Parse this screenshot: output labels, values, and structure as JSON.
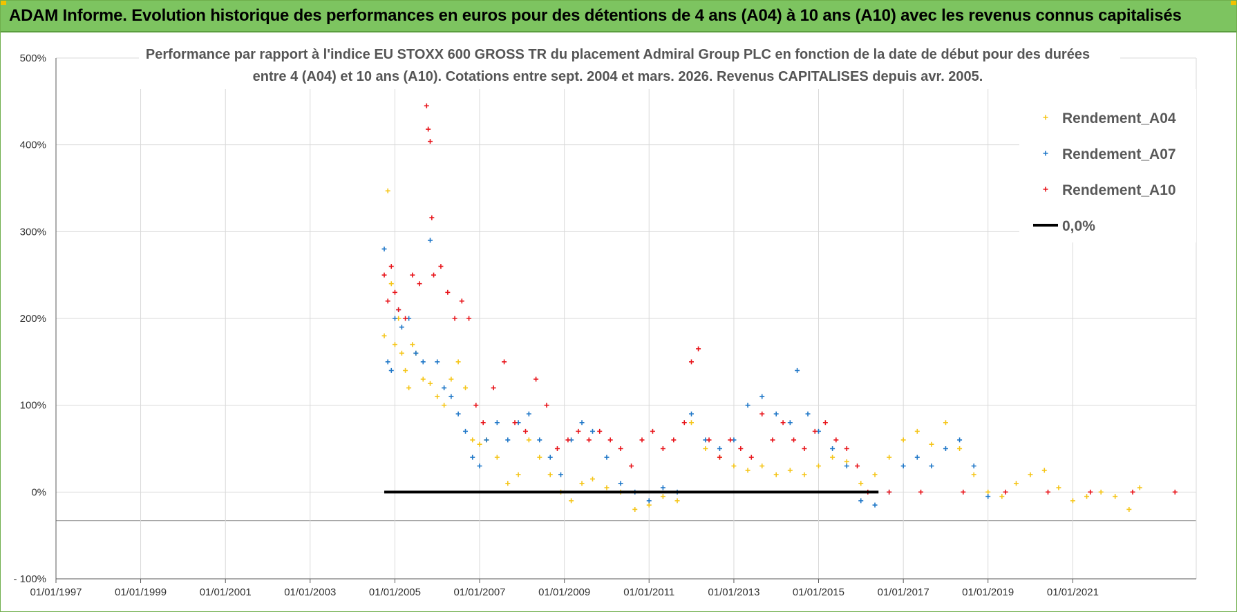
{
  "banner": {
    "title": "ADAM Informe. Evolution historique des performances en euros pour des détentions de 4 ans (A04) à 10 ans (A10) avec les revenus connus capitalisés"
  },
  "chart_data": {
    "type": "scatter",
    "title_line1": "Performance par rapport à l'indice EU STOXX 600 GROSS TR  du placement Admiral Group PLC en fonction de la date de début pour des durées",
    "title_line2": "entre 4 (A04) et 10 ans (A10).  Cotations entre sept. 2004 et mars. 2026. Revenus CAPITALISES depuis avr. 2005.",
    "xlabel": "",
    "ylabel": "",
    "x_range": [
      "1997-01-01",
      "2023-12-01"
    ],
    "y_range": [
      -100,
      500
    ],
    "x_tick_labels": [
      "01/01/1997",
      "01/01/1999",
      "01/01/2001",
      "01/01/2003",
      "01/01/2005",
      "01/01/2007",
      "01/01/2009",
      "01/01/2011",
      "01/01/2013",
      "01/01/2015",
      "01/01/2017",
      "01/01/2019",
      "01/01/2021"
    ],
    "y_tick_labels": [
      "500%",
      "400%",
      "300%",
      "200%",
      "100%",
      "0%",
      "- 100%"
    ],
    "grid": true,
    "legend_position": "top-right",
    "series": [
      {
        "name": "Rendement_A04",
        "color": "#f5c518",
        "marker": "plus",
        "points": [
          [
            "2004-10-01",
            180
          ],
          [
            "2004-11-01",
            347
          ],
          [
            "2004-12-01",
            240
          ],
          [
            "2005-01-01",
            170
          ],
          [
            "2005-02-01",
            200
          ],
          [
            "2005-03-01",
            160
          ],
          [
            "2005-04-01",
            140
          ],
          [
            "2005-05-01",
            120
          ],
          [
            "2005-06-01",
            170
          ],
          [
            "2005-07-01",
            160
          ],
          [
            "2005-09-01",
            130
          ],
          [
            "2005-11-01",
            125
          ],
          [
            "2006-01-01",
            110
          ],
          [
            "2006-03-01",
            100
          ],
          [
            "2006-05-01",
            130
          ],
          [
            "2006-07-01",
            150
          ],
          [
            "2006-09-01",
            120
          ],
          [
            "2006-11-01",
            60
          ],
          [
            "2007-01-01",
            55
          ],
          [
            "2007-03-01",
            60
          ],
          [
            "2007-06-01",
            40
          ],
          [
            "2007-09-01",
            10
          ],
          [
            "2007-12-01",
            20
          ],
          [
            "2008-03-01",
            60
          ],
          [
            "2008-06-01",
            40
          ],
          [
            "2008-09-01",
            20
          ],
          [
            "2008-12-01",
            0
          ],
          [
            "2009-03-01",
            -10
          ],
          [
            "2009-06-01",
            10
          ],
          [
            "2009-09-01",
            15
          ],
          [
            "2010-01-01",
            5
          ],
          [
            "2010-05-01",
            0
          ],
          [
            "2010-09-01",
            -20
          ],
          [
            "2011-01-01",
            -15
          ],
          [
            "2011-05-01",
            -5
          ],
          [
            "2011-09-01",
            -10
          ],
          [
            "2012-01-01",
            80
          ],
          [
            "2012-05-01",
            50
          ],
          [
            "2012-09-01",
            40
          ],
          [
            "2013-01-01",
            30
          ],
          [
            "2013-05-01",
            25
          ],
          [
            "2013-09-01",
            30
          ],
          [
            "2014-01-01",
            20
          ],
          [
            "2014-05-01",
            25
          ],
          [
            "2014-09-01",
            20
          ],
          [
            "2015-01-01",
            30
          ],
          [
            "2015-05-01",
            40
          ],
          [
            "2015-09-01",
            35
          ],
          [
            "2016-01-01",
            10
          ],
          [
            "2016-05-01",
            20
          ],
          [
            "2016-09-01",
            40
          ],
          [
            "2017-01-01",
            60
          ],
          [
            "2017-05-01",
            70
          ],
          [
            "2017-09-01",
            55
          ],
          [
            "2018-01-01",
            80
          ],
          [
            "2018-05-01",
            50
          ],
          [
            "2018-09-01",
            20
          ],
          [
            "2019-01-01",
            0
          ],
          [
            "2019-05-01",
            -5
          ],
          [
            "2019-09-01",
            10
          ],
          [
            "2020-01-01",
            20
          ],
          [
            "2020-05-01",
            25
          ],
          [
            "2020-09-01",
            5
          ],
          [
            "2021-01-01",
            -10
          ],
          [
            "2021-05-01",
            -5
          ],
          [
            "2021-09-01",
            0
          ],
          [
            "2022-01-01",
            -5
          ],
          [
            "2022-05-01",
            -20
          ],
          [
            "2022-08-01",
            5
          ]
        ]
      },
      {
        "name": "Rendement_A07",
        "color": "#1f77c8",
        "marker": "plus",
        "points": [
          [
            "2004-10-01",
            280
          ],
          [
            "2004-11-01",
            150
          ],
          [
            "2004-12-01",
            140
          ],
          [
            "2005-01-01",
            200
          ],
          [
            "2005-02-01",
            210
          ],
          [
            "2005-03-01",
            190
          ],
          [
            "2005-05-01",
            200
          ],
          [
            "2005-07-01",
            160
          ],
          [
            "2005-09-01",
            150
          ],
          [
            "2005-11-01",
            290
          ],
          [
            "2006-01-01",
            150
          ],
          [
            "2006-03-01",
            120
          ],
          [
            "2006-05-01",
            110
          ],
          [
            "2006-07-01",
            90
          ],
          [
            "2006-09-01",
            70
          ],
          [
            "2006-11-01",
            40
          ],
          [
            "2007-01-01",
            30
          ],
          [
            "2007-03-01",
            60
          ],
          [
            "2007-06-01",
            80
          ],
          [
            "2007-09-01",
            60
          ],
          [
            "2007-12-01",
            80
          ],
          [
            "2008-03-01",
            90
          ],
          [
            "2008-06-01",
            60
          ],
          [
            "2008-09-01",
            40
          ],
          [
            "2008-12-01",
            20
          ],
          [
            "2009-03-01",
            60
          ],
          [
            "2009-06-01",
            80
          ],
          [
            "2009-09-01",
            70
          ],
          [
            "2010-01-01",
            40
          ],
          [
            "2010-05-01",
            10
          ],
          [
            "2010-09-01",
            0
          ],
          [
            "2011-01-01",
            -10
          ],
          [
            "2011-05-01",
            5
          ],
          [
            "2011-09-01",
            0
          ],
          [
            "2012-01-01",
            90
          ],
          [
            "2012-05-01",
            60
          ],
          [
            "2012-09-01",
            50
          ],
          [
            "2013-01-01",
            60
          ],
          [
            "2013-05-01",
            100
          ],
          [
            "2013-09-01",
            110
          ],
          [
            "2014-01-01",
            90
          ],
          [
            "2014-05-01",
            80
          ],
          [
            "2014-07-01",
            140
          ],
          [
            "2014-10-01",
            90
          ],
          [
            "2015-01-01",
            70
          ],
          [
            "2015-05-01",
            50
          ],
          [
            "2015-09-01",
            30
          ],
          [
            "2016-01-01",
            -10
          ],
          [
            "2016-05-01",
            -15
          ],
          [
            "2016-09-01",
            0
          ],
          [
            "2017-01-01",
            30
          ],
          [
            "2017-05-01",
            40
          ],
          [
            "2017-09-01",
            30
          ],
          [
            "2018-01-01",
            50
          ],
          [
            "2018-05-01",
            60
          ],
          [
            "2018-09-01",
            30
          ],
          [
            "2019-01-01",
            -5
          ]
        ]
      },
      {
        "name": "Rendement_A10",
        "color": "#e8151b",
        "marker": "plus",
        "points": [
          [
            "2004-10-01",
            250
          ],
          [
            "2004-11-01",
            220
          ],
          [
            "2004-12-01",
            260
          ],
          [
            "2005-01-01",
            230
          ],
          [
            "2005-02-01",
            210
          ],
          [
            "2005-04-01",
            200
          ],
          [
            "2005-06-01",
            250
          ],
          [
            "2005-08-01",
            240
          ],
          [
            "2005-10-01",
            445
          ],
          [
            "2005-10-15",
            418
          ],
          [
            "2005-11-01",
            404
          ],
          [
            "2005-11-15",
            316
          ],
          [
            "2005-12-01",
            250
          ],
          [
            "2006-02-01",
            260
          ],
          [
            "2006-04-01",
            230
          ],
          [
            "2006-06-01",
            200
          ],
          [
            "2006-08-01",
            220
          ],
          [
            "2006-10-01",
            200
          ],
          [
            "2006-12-01",
            100
          ],
          [
            "2007-02-01",
            80
          ],
          [
            "2007-05-01",
            120
          ],
          [
            "2007-08-01",
            150
          ],
          [
            "2007-11-01",
            80
          ],
          [
            "2008-02-01",
            70
          ],
          [
            "2008-05-01",
            130
          ],
          [
            "2008-08-01",
            100
          ],
          [
            "2008-11-01",
            50
          ],
          [
            "2009-02-01",
            60
          ],
          [
            "2009-05-01",
            70
          ],
          [
            "2009-08-01",
            60
          ],
          [
            "2009-11-01",
            70
          ],
          [
            "2010-02-01",
            60
          ],
          [
            "2010-05-01",
            50
          ],
          [
            "2010-08-01",
            30
          ],
          [
            "2010-11-01",
            60
          ],
          [
            "2011-02-01",
            70
          ],
          [
            "2011-05-01",
            50
          ],
          [
            "2011-08-01",
            60
          ],
          [
            "2011-11-01",
            80
          ],
          [
            "2012-01-01",
            150
          ],
          [
            "2012-03-01",
            165
          ],
          [
            "2012-06-01",
            60
          ],
          [
            "2012-09-01",
            40
          ],
          [
            "2012-12-01",
            60
          ],
          [
            "2013-03-01",
            50
          ],
          [
            "2013-06-01",
            40
          ],
          [
            "2013-09-01",
            90
          ],
          [
            "2013-12-01",
            60
          ],
          [
            "2014-03-01",
            80
          ],
          [
            "2014-06-01",
            60
          ],
          [
            "2014-09-01",
            50
          ],
          [
            "2014-12-01",
            70
          ],
          [
            "2015-03-01",
            80
          ],
          [
            "2015-06-01",
            60
          ],
          [
            "2015-09-01",
            50
          ],
          [
            "2015-12-01",
            30
          ],
          [
            "2016-03-01",
            0
          ],
          [
            "2016-09-01",
            0
          ],
          [
            "2017-06-01",
            0
          ],
          [
            "2018-06-01",
            0
          ],
          [
            "2019-06-01",
            0
          ],
          [
            "2020-06-01",
            0
          ],
          [
            "2021-06-01",
            0
          ],
          [
            "2022-06-01",
            0
          ],
          [
            "2023-06-01",
            0
          ]
        ]
      },
      {
        "name": "0,0%",
        "color": "#000000",
        "marker": "line",
        "points": [
          [
            "2004-10-01",
            0
          ],
          [
            "2016-06-01",
            0
          ]
        ]
      }
    ]
  }
}
